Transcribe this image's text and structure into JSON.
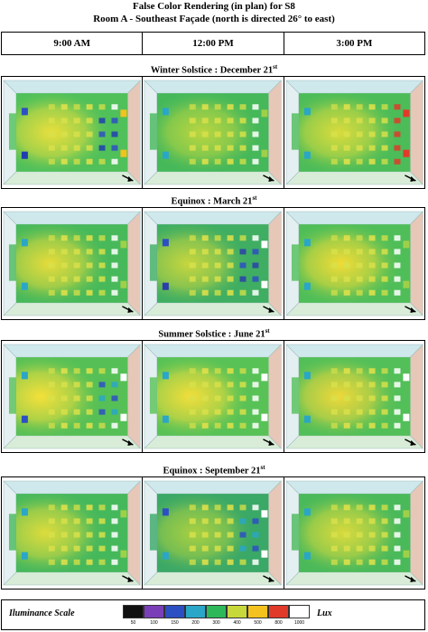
{
  "title": {
    "line1": "False Color Rendering (in plan) for S8",
    "line2": "Room A - Southeast Façade (north is directed 26° to east)"
  },
  "times": [
    "9:00 AM",
    "12:00 PM",
    "3:00 PM"
  ],
  "seasons": [
    {
      "label": "Winter Solstice : December 21",
      "suffix": "st"
    },
    {
      "label": "Equinox : March 21",
      "suffix": "st"
    },
    {
      "label": "Summer Solstice : June 21",
      "suffix": "st"
    },
    {
      "label": "Equinox : September 21",
      "suffix": "st"
    }
  ],
  "scale": {
    "label": "Iluminance Scale",
    "unit": "Lux",
    "ticks": [
      "50",
      "100",
      "150",
      "200",
      "300",
      "400",
      "500",
      "800",
      "1000"
    ],
    "colors": [
      "#111111",
      "#7a3fb8",
      "#2d4fc4",
      "#2aa6c8",
      "#2fb85a",
      "#c7d83a",
      "#f3c21f",
      "#e23a2a",
      "#ffffff"
    ]
  },
  "renderings": [
    [
      {
        "base": "#4fc05a",
        "glow": "#e8df3c",
        "gx": 0.32,
        "window": "#ffffff",
        "blue": [
          "#2d4fc4",
          "#1f3fb0"
        ],
        "hot": "#f3c21f"
      },
      {
        "base": "#45b85a",
        "glow": "#b9d640",
        "gx": 0.4,
        "window": "#ffffff",
        "blue": [
          "#2aa6c8"
        ],
        "hot": "#9fd04a"
      },
      {
        "base": "#4cbc58",
        "glow": "#d9dc3c",
        "gx": 0.36,
        "window": "#e23a2a",
        "blue": [
          "#2aa6c8"
        ],
        "hot": "#e23a2a"
      }
    ],
    [
      {
        "base": "#48b95a",
        "glow": "#e6dc3a",
        "gx": 0.3,
        "window": "#ffffff",
        "blue": [
          "#2aa6c8"
        ],
        "hot": "#9fd04a"
      },
      {
        "base": "#3fae62",
        "glow": "#c6d63e",
        "gx": 0.28,
        "window": "#ffffff",
        "blue": [
          "#2d4fc4",
          "#2a3faa"
        ],
        "hot": "#ffffff"
      },
      {
        "base": "#4fbe58",
        "glow": "#f0dc36",
        "gx": 0.38,
        "window": "#ffffff",
        "blue": [
          "#2aa6c8"
        ],
        "hot": "#9fd04a"
      }
    ],
    [
      {
        "base": "#56c056",
        "glow": "#f4e03a",
        "gx": 0.22,
        "window": "#ffffff",
        "blue": [
          "#2aa6c8",
          "#2d4fc4"
        ],
        "hot": "#ffffff"
      },
      {
        "base": "#58c256",
        "glow": "#f2de3a",
        "gx": 0.3,
        "window": "#ffffff",
        "blue": [
          "#2aa6c8"
        ],
        "hot": "#ffffff"
      },
      {
        "base": "#52bf58",
        "glow": "#eed83a",
        "gx": 0.36,
        "window": "#ffffff",
        "blue": [
          "#2aa6c8"
        ],
        "hot": "#ffffff"
      }
    ],
    [
      {
        "base": "#46b85c",
        "glow": "#dcdc3c",
        "gx": 0.26,
        "window": "#ffffff",
        "blue": [
          "#2aa6c8"
        ],
        "hot": "#9fd04a"
      },
      {
        "base": "#3aa866",
        "glow": "#a8d042",
        "gx": 0.34,
        "window": "#ffffff",
        "blue": [
          "#2d4fc4",
          "#2aa6c8"
        ],
        "hot": "#ffffff"
      },
      {
        "base": "#4ab95a",
        "glow": "#d8da3c",
        "gx": 0.4,
        "window": "#ffffff",
        "blue": [
          "#2aa6c8"
        ],
        "hot": "#9fd04a"
      }
    ]
  ]
}
